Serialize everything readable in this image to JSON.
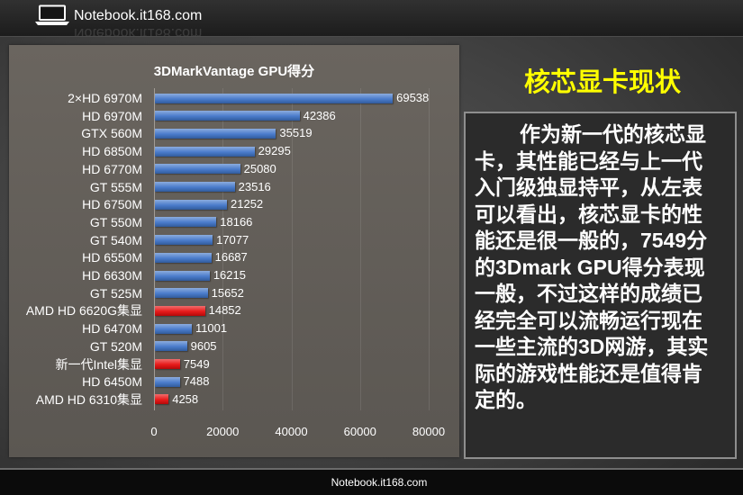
{
  "header": {
    "site_name": "Notebook.it168.com",
    "logo_icon": "laptop-icon"
  },
  "chart_data": {
    "type": "bar",
    "horizontal": true,
    "title": "3DMarkVantage GPU得分",
    "categories": [
      "2×HD 6970M",
      "HD 6970M",
      "GTX 560M",
      "HD 6850M",
      "HD 6770M",
      "GT 555M",
      "HD 6750M",
      "GT 550M",
      "GT 540M",
      "HD 6550M",
      "HD 6630M",
      "GT 525M",
      "AMD HD 6620G集显",
      "HD 6470M",
      "GT 520M",
      "新一代Intel集显",
      "HD 6450M",
      "AMD HD 6310集显"
    ],
    "values": [
      69538,
      42386,
      35519,
      29295,
      25080,
      23516,
      21252,
      18166,
      17077,
      16687,
      16215,
      15652,
      14852,
      11001,
      9605,
      7549,
      7488,
      4258
    ],
    "xlim": [
      0,
      80000
    ],
    "x_ticks": [
      0,
      20000,
      40000,
      60000,
      80000
    ],
    "grid": true,
    "legend": false,
    "data_labels": true,
    "bar_color": "#3f74c8",
    "highlight_color": "#e60c0c",
    "highlight_indices": [
      12,
      15,
      17
    ]
  },
  "sidebar": {
    "title": "核芯显卡现状",
    "title_color": "#ffff00",
    "body_lines": [
      "作为新一代的核芯显",
      "卡，其性能已经与上一代",
      "入门级独显持平，从左表",
      "可以看出，核芯显卡的性",
      "能还是很一般的，7549分",
      "的3Dmark GPU得分表现",
      "一般，不过这样的成绩已",
      "经完全可以流畅运行现在",
      "一些主流的3D网游，其实",
      "际的游戏性能还是值得肯",
      "定的。"
    ]
  },
  "footer": {
    "site_name": "Notebook.it168.com"
  }
}
